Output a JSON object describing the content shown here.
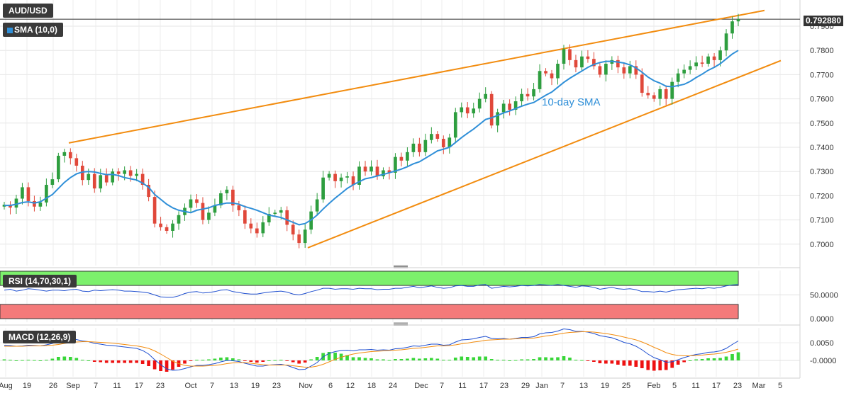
{
  "labels": {
    "symbol": "AUD/USD",
    "sma": "SMA (10,0)",
    "rsi": "RSI (14,70,30,1)",
    "macd": "MACD (12,26,9)",
    "annotation": "10-day SMA",
    "last_price": "0.792880"
  },
  "colors": {
    "up": "#2e9e3f",
    "down": "#e0483a",
    "sma": "#2f8fd8",
    "trendline": "#f28c0f",
    "rsi_overbought": "#7cf06c",
    "rsi_oversold": "#f47a7a",
    "macd_line": "#1f4fd0",
    "signal_line": "#f28c0f"
  },
  "chart_data": [
    {
      "type": "candlestick",
      "title": "AUD/USD",
      "y_ticks": [
        "0.7900",
        "0.7800",
        "0.7700",
        "0.7600",
        "0.7500",
        "0.7400",
        "0.7300",
        "0.7200",
        "0.7100",
        "0.7000"
      ],
      "x_ticks": [
        "Aug",
        "19",
        "26",
        "Sep",
        "7",
        "11",
        "17",
        "23",
        "Oct",
        "7",
        "13",
        "19",
        "23",
        "Nov",
        "6",
        "12",
        "18",
        "24",
        "Dec",
        "7",
        "11",
        "17",
        "23",
        "29",
        "Jan",
        "7",
        "13",
        "19",
        "25",
        "Feb",
        "5",
        "11",
        "17",
        "23",
        "Mar",
        "5"
      ],
      "ylim": [
        0.6935,
        0.7985
      ],
      "last_price": 0.79288,
      "closes": [
        0.7163,
        0.7151,
        0.7188,
        0.7235,
        0.7178,
        0.7155,
        0.7172,
        0.7245,
        0.7268,
        0.7365,
        0.738,
        0.7355,
        0.7324,
        0.7265,
        0.729,
        0.723,
        0.7285,
        0.7255,
        0.73,
        0.729,
        0.7305,
        0.7282,
        0.729,
        0.7245,
        0.7195,
        0.7085,
        0.707,
        0.7055,
        0.7085,
        0.712,
        0.715,
        0.7185,
        0.717,
        0.71,
        0.713,
        0.716,
        0.721,
        0.7225,
        0.716,
        0.714,
        0.7085,
        0.7065,
        0.7045,
        0.709,
        0.7125,
        0.713,
        0.714,
        0.708,
        0.704,
        0.7005,
        0.706,
        0.7135,
        0.7185,
        0.7275,
        0.729,
        0.726,
        0.7275,
        0.728,
        0.7245,
        0.732,
        0.73,
        0.732,
        0.728,
        0.7305,
        0.7295,
        0.736,
        0.7345,
        0.738,
        0.7415,
        0.738,
        0.743,
        0.7455,
        0.7435,
        0.74,
        0.744,
        0.7545,
        0.7565,
        0.754,
        0.756,
        0.76,
        0.762,
        0.749,
        0.7545,
        0.758,
        0.7555,
        0.759,
        0.762,
        0.761,
        0.764,
        0.7715,
        0.7705,
        0.7685,
        0.7745,
        0.7805,
        0.776,
        0.773,
        0.7775,
        0.7765,
        0.7735,
        0.77,
        0.7745,
        0.776,
        0.773,
        0.7705,
        0.7735,
        0.77,
        0.7625,
        0.7615,
        0.76,
        0.764,
        0.76,
        0.767,
        0.7705,
        0.772,
        0.7735,
        0.775,
        0.7745,
        0.7775,
        0.776,
        0.78,
        0.787,
        0.792,
        0.79288
      ],
      "sma10": [
        0.716,
        0.716,
        0.7165,
        0.7172,
        0.7175,
        0.717,
        0.7175,
        0.719,
        0.7205,
        0.723,
        0.7255,
        0.7275,
        0.729,
        0.7298,
        0.73,
        0.7298,
        0.7292,
        0.7287,
        0.7288,
        0.7283,
        0.7275,
        0.727,
        0.7265,
        0.7252,
        0.7235,
        0.7205,
        0.7185,
        0.7165,
        0.715,
        0.714,
        0.7135,
        0.713,
        0.714,
        0.7145,
        0.715,
        0.716,
        0.7165,
        0.717,
        0.717,
        0.7165,
        0.7155,
        0.7148,
        0.714,
        0.713,
        0.712,
        0.7115,
        0.711,
        0.71,
        0.709,
        0.708,
        0.7085,
        0.71,
        0.712,
        0.7145,
        0.7168,
        0.719,
        0.721,
        0.723,
        0.7245,
        0.7258,
        0.727,
        0.7275,
        0.7282,
        0.7288,
        0.7295,
        0.7302,
        0.731,
        0.732,
        0.7332,
        0.734,
        0.7355,
        0.737,
        0.7385,
        0.7392,
        0.74,
        0.742,
        0.744,
        0.7458,
        0.7475,
        0.7495,
        0.7515,
        0.7522,
        0.7532,
        0.7542,
        0.755,
        0.756,
        0.757,
        0.7578,
        0.7585,
        0.76,
        0.7615,
        0.7628,
        0.7648,
        0.7668,
        0.7685,
        0.77,
        0.7715,
        0.773,
        0.7742,
        0.775,
        0.7755,
        0.7755,
        0.7752,
        0.7748,
        0.774,
        0.7728,
        0.771,
        0.769,
        0.7675,
        0.7665,
        0.7652,
        0.765,
        0.7655,
        0.766,
        0.7672,
        0.7688,
        0.7702,
        0.7718,
        0.773,
        0.7745,
        0.7765,
        0.7785,
        0.78
      ]
    },
    {
      "type": "line",
      "title": "RSI (14,70,30,1)",
      "y_ticks": [
        "50.0000",
        "0.0000"
      ],
      "overbought": 70,
      "oversold": 30,
      "ylim": [
        0,
        100
      ],
      "values": [
        60,
        62,
        58,
        60,
        63,
        62,
        60,
        58,
        60,
        60,
        59,
        61,
        62,
        58,
        57,
        60,
        59,
        60,
        61,
        60,
        58,
        58,
        57,
        56,
        54,
        50,
        46,
        45,
        45,
        48,
        53,
        56,
        57,
        54,
        55,
        57,
        60,
        61,
        57,
        55,
        53,
        52,
        52,
        54,
        56,
        57,
        58,
        56,
        52,
        50,
        53,
        57,
        60,
        64,
        64,
        62,
        63,
        63,
        62,
        64,
        63,
        63,
        61,
        62,
        62,
        64,
        64,
        66,
        68,
        65,
        67,
        69,
        66,
        64,
        65,
        69,
        70,
        68,
        68,
        71,
        72,
        64,
        66,
        68,
        67,
        68,
        70,
        69,
        70,
        72,
        71,
        70,
        72,
        70,
        68,
        66,
        69,
        68,
        66,
        62,
        64,
        66,
        63,
        62,
        63,
        61,
        57,
        57,
        56,
        58,
        56,
        59,
        61,
        62,
        63,
        64,
        63,
        65,
        64,
        66,
        69,
        71,
        72
      ]
    },
    {
      "type": "line",
      "title": "MACD (12,26,9)",
      "y_ticks": [
        "0.0050",
        "-0.0000"
      ],
      "ylim": [
        -0.0045,
        0.0095
      ],
      "macd": [
        0.0043,
        0.0042,
        0.004,
        0.0041,
        0.0043,
        0.0042,
        0.0041,
        0.0044,
        0.0048,
        0.0055,
        0.0059,
        0.006,
        0.0059,
        0.0055,
        0.0053,
        0.0048,
        0.0046,
        0.0043,
        0.0042,
        0.004,
        0.0038,
        0.0036,
        0.0034,
        0.0028,
        0.0018,
        0.0002,
        -0.0012,
        -0.0024,
        -0.0028,
        -0.0027,
        -0.0023,
        -0.0018,
        -0.0014,
        -0.0014,
        -0.0012,
        -0.0009,
        -0.0004,
        0.0,
        -0.0001,
        -0.0003,
        -0.0008,
        -0.0012,
        -0.0016,
        -0.0016,
        -0.0013,
        -0.0012,
        -0.0011,
        -0.0014,
        -0.002,
        -0.0026,
        -0.0025,
        -0.0016,
        -0.0006,
        0.001,
        0.002,
        0.0025,
        0.0028,
        0.0029,
        0.0027,
        0.003,
        0.003,
        0.0031,
        0.0029,
        0.003,
        0.0029,
        0.0033,
        0.0034,
        0.0037,
        0.0041,
        0.004,
        0.0043,
        0.0046,
        0.0046,
        0.0043,
        0.0044,
        0.0052,
        0.0058,
        0.0059,
        0.0061,
        0.0065,
        0.0068,
        0.0062,
        0.0061,
        0.0062,
        0.006,
        0.0062,
        0.0065,
        0.0065,
        0.0067,
        0.0075,
        0.0078,
        0.0079,
        0.0083,
        0.0089,
        0.0087,
        0.0082,
        0.0082,
        0.008,
        0.0076,
        0.007,
        0.0067,
        0.0064,
        0.0058,
        0.0051,
        0.0047,
        0.004,
        0.003,
        0.0018,
        0.0008,
        0.0002,
        -0.0005,
        -0.0004,
        0.0002,
        0.0008,
        0.0013,
        0.0017,
        0.0019,
        0.0023,
        0.0024,
        0.0027,
        0.0034,
        0.0045,
        0.0055
      ],
      "signal": [
        0.004,
        0.004,
        0.004,
        0.004,
        0.0041,
        0.0041,
        0.0041,
        0.0042,
        0.0043,
        0.0045,
        0.0048,
        0.005,
        0.0052,
        0.0053,
        0.0053,
        0.0052,
        0.0051,
        0.005,
        0.0049,
        0.0047,
        0.0045,
        0.0043,
        0.0041,
        0.0038,
        0.0034,
        0.0027,
        0.0018,
        0.0008,
        -0.0002,
        -0.0009,
        -0.0014,
        -0.0016,
        -0.0016,
        -0.0016,
        -0.0015,
        -0.0014,
        -0.0012,
        -0.0009,
        -0.0007,
        -0.0006,
        -0.0006,
        -0.0008,
        -0.001,
        -0.0012,
        -0.0013,
        -0.0013,
        -0.0013,
        -0.0013,
        -0.0015,
        -0.0017,
        -0.0019,
        -0.0019,
        -0.0016,
        -0.0011,
        -0.0004,
        0.0003,
        0.0009,
        0.0014,
        0.0018,
        0.0021,
        0.0023,
        0.0025,
        0.0026,
        0.0027,
        0.0028,
        0.0029,
        0.003,
        0.0032,
        0.0034,
        0.0035,
        0.0037,
        0.0039,
        0.0041,
        0.0041,
        0.0042,
        0.0044,
        0.0047,
        0.0049,
        0.0052,
        0.0054,
        0.0057,
        0.0058,
        0.0059,
        0.006,
        0.006,
        0.0061,
        0.0062,
        0.0062,
        0.0063,
        0.0066,
        0.0069,
        0.0071,
        0.0074,
        0.0077,
        0.0079,
        0.008,
        0.0081,
        0.0081,
        0.008,
        0.0078,
        0.0076,
        0.0073,
        0.007,
        0.0066,
        0.0062,
        0.0058,
        0.0052,
        0.0045,
        0.0037,
        0.003,
        0.0022,
        0.0017,
        0.0014,
        0.0013,
        0.0013,
        0.0014,
        0.0015,
        0.0017,
        0.0018,
        0.002,
        0.0023,
        0.0027,
        0.0032
      ]
    }
  ]
}
